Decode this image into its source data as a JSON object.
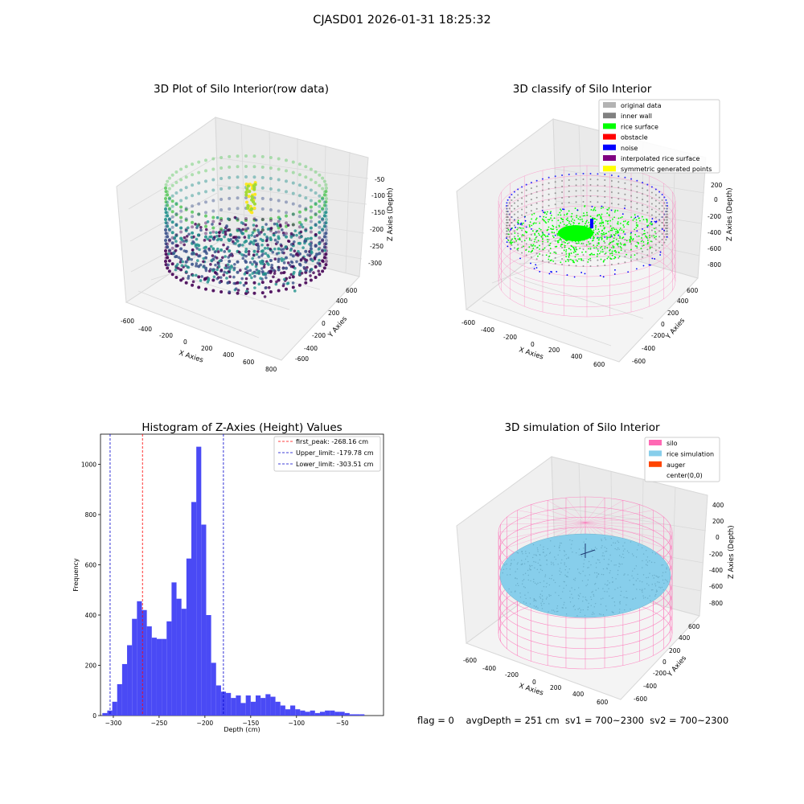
{
  "suptitle": "CJASD01 2026-01-31 18:25:32",
  "footer": "flag = 0    avgDepth = 251 cm  sv1 = 700~2300  sv2 = 700~2300",
  "colors": {
    "hist_bar": "#4a4af5",
    "peak_line": "#ff0000",
    "limit_line": "#0000cd",
    "silo_wire": "#ff69b4",
    "rice_sim": "#87ceeb"
  },
  "chart_data": [
    {
      "type": "scatter3d",
      "title": "3D Plot of Silo Interior(row data)",
      "xlabel": "X Axies",
      "ylabel": "Y Axies",
      "zlabel": "Z Axies (Depth)",
      "x_ticks": [
        "-600",
        "-400",
        "-200",
        "0",
        "200",
        "400",
        "600",
        "800"
      ],
      "y_ticks": [
        "-600",
        "-400",
        "-200",
        "0",
        "200",
        "400",
        "600"
      ],
      "z_ticks": [
        "-50",
        "-100",
        "-150",
        "-200",
        "-250",
        "-300"
      ],
      "colormap": "viridis"
    },
    {
      "type": "scatter3d",
      "title": "3D classify of Silo Interior",
      "xlabel": "X Axies",
      "ylabel": "Y Axies",
      "zlabel": "Z Axies (Depth)",
      "x_ticks": [
        "-600",
        "-400",
        "-200",
        "0",
        "200",
        "400",
        "600"
      ],
      "y_ticks": [
        "-600",
        "-400",
        "-200",
        "0",
        "200",
        "400",
        "600"
      ],
      "z_ticks": [
        "200",
        "0",
        "-200",
        "-400",
        "-600",
        "-800"
      ],
      "legend": [
        {
          "label": "original data",
          "color": "#b3b3b3"
        },
        {
          "label": "inner wall",
          "color": "#808080"
        },
        {
          "label": "rice surface",
          "color": "#00ff00"
        },
        {
          "label": "obstacle",
          "color": "#ff0000"
        },
        {
          "label": "noise",
          "color": "#0000ff"
        },
        {
          "label": "interpolated rice surface",
          "color": "#800080"
        },
        {
          "label": "symmetric generated points",
          "color": "#ffff00"
        }
      ],
      "legend_position": "top-right"
    },
    {
      "type": "bar",
      "title": "Histogram of Z-Axies (Height) Values",
      "xlabel": "Depth (cm)",
      "ylabel": "Frequency",
      "xlim": [
        -314,
        -5
      ],
      "ylim": [
        0,
        1120
      ],
      "x_ticks": [
        -300,
        -250,
        -200,
        -150,
        -100,
        -50
      ],
      "y_ticks": [
        0,
        200,
        400,
        600,
        800,
        1000
      ],
      "bin_start": -312,
      "bin_width": 5.4,
      "values": [
        10,
        20,
        55,
        125,
        205,
        280,
        385,
        455,
        420,
        355,
        310,
        305,
        305,
        375,
        530,
        465,
        425,
        625,
        850,
        1070,
        760,
        400,
        210,
        120,
        95,
        90,
        70,
        80,
        50,
        80,
        55,
        80,
        70,
        85,
        75,
        55,
        40,
        25,
        40,
        25,
        20,
        15,
        20,
        10,
        15,
        20,
        20,
        15,
        15,
        10,
        5,
        5,
        5
      ],
      "vlines": [
        {
          "label": "first_peak: -268.16 cm",
          "x": -268.16,
          "color": "#ff0000"
        },
        {
          "label": "Upper_limit: -179.78 cm",
          "x": -179.78,
          "color": "#0000cd"
        },
        {
          "label": "Lower_limit: -303.51 cm",
          "x": -303.51,
          "color": "#0000cd"
        }
      ],
      "legend_position": "top-right"
    },
    {
      "type": "surface3d",
      "title": "3D simulation of Silo Interior",
      "xlabel": "X Axies",
      "ylabel": "Y Axies",
      "zlabel": "Z Axies (Depth)",
      "x_ticks": [
        "-600",
        "-400",
        "-200",
        "0",
        "200",
        "400",
        "600"
      ],
      "y_ticks": [
        "-600",
        "-400",
        "-200",
        "0",
        "200",
        "400",
        "600"
      ],
      "z_ticks": [
        "400",
        "200",
        "0",
        "-200",
        "-400",
        "-600",
        "-800"
      ],
      "legend": [
        {
          "label": "silo",
          "color": "#ff69b4"
        },
        {
          "label": "rice simulation",
          "color": "#87ceeb"
        },
        {
          "label": "auger",
          "color": "#ff4500"
        },
        {
          "label": "center(0,0)",
          "color": ""
        }
      ],
      "legend_position": "top-right"
    }
  ]
}
